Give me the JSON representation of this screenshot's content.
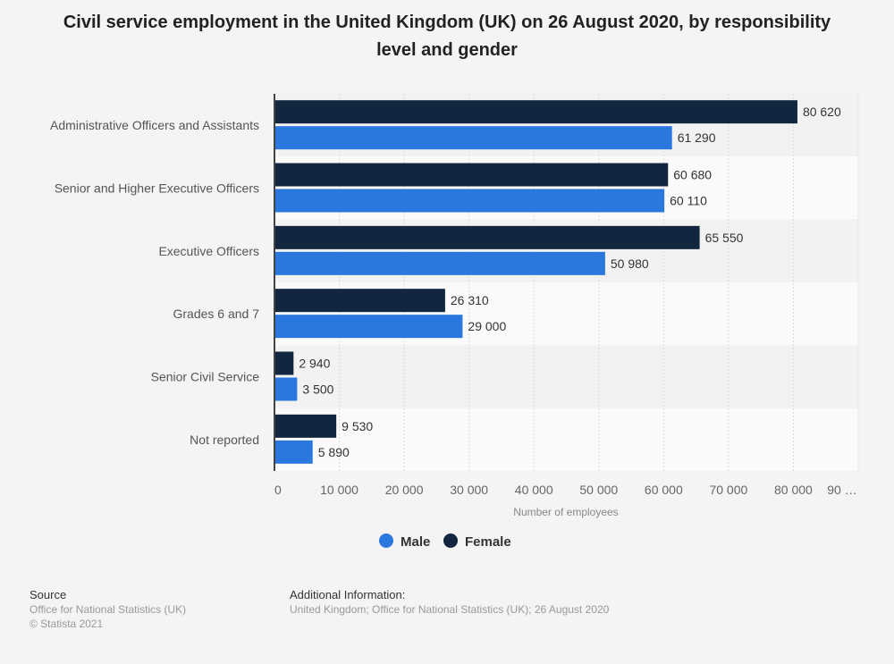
{
  "chart_data": {
    "type": "bar",
    "orientation": "horizontal",
    "title": "Civil service employment in the United Kingdom (UK) on 26 August 2020, by responsibility level and gender",
    "xlabel": "Number of employees",
    "categories": [
      "Administrative Officers and Assistants",
      "Senior and Higher Executive Officers",
      "Executive Officers",
      "Grades 6 and 7",
      "Senior Civil Service",
      "Not reported"
    ],
    "series": [
      {
        "name": "Female",
        "color": "#12263f",
        "values": [
          80620,
          60680,
          65550,
          26310,
          2940,
          9530
        ],
        "labels": [
          "80 620",
          "60 680",
          "65 550",
          "26 310",
          "2 940",
          "9 530"
        ]
      },
      {
        "name": "Male",
        "color": "#2a78de",
        "values": [
          61290,
          60110,
          50980,
          29000,
          3500,
          5890
        ],
        "labels": [
          "61 290",
          "60 110",
          "50 980",
          "29 000",
          "3 500",
          "5 890"
        ]
      }
    ],
    "xlim": [
      0,
      90000
    ],
    "ticks": [
      "0",
      "10 000",
      "20 000",
      "30 000",
      "40 000",
      "50 000",
      "60 000",
      "70 000",
      "80 000",
      "90 …"
    ],
    "grid": true,
    "legend": {
      "placement": "bottom",
      "entries": [
        {
          "name": "Male",
          "color": "#2a78de"
        },
        {
          "name": "Female",
          "color": "#12263f"
        }
      ]
    }
  },
  "footer": {
    "source_heading": "Source",
    "source_lines": [
      "Office for National Statistics (UK)",
      "© Statista 2021"
    ],
    "info_heading": "Additional Information:",
    "info_text": "United Kingdom; Office for National Statistics (UK); 26 August 2020"
  }
}
